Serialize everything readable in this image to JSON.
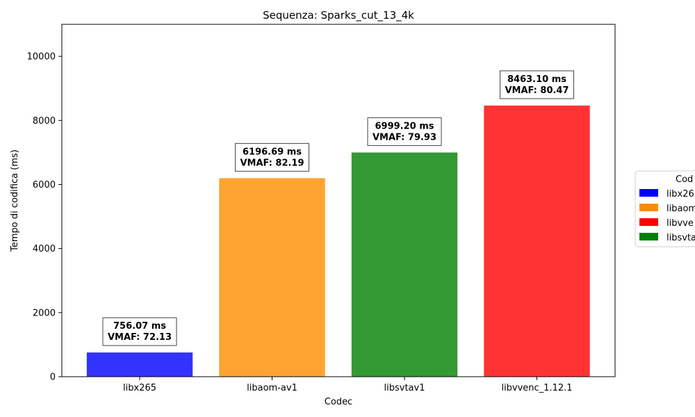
{
  "chart_data": {
    "type": "bar",
    "title": "Sequenza: Sparks_cut_13_4k",
    "xlabel": "Codec",
    "ylabel": "Tempo di codifica (ms)",
    "ylim": [
      0,
      11000
    ],
    "yticks": [
      0,
      2000,
      4000,
      6000,
      8000,
      10000
    ],
    "grid": false,
    "categories": [
      "libx265",
      "libaom-av1",
      "libsvtav1",
      "libvvenc_1.12.1"
    ],
    "values": [
      756.07,
      6196.69,
      6999.2,
      8463.1
    ],
    "bar_colors": [
      "#3333ff",
      "#ffa333",
      "#339933",
      "#ff3333"
    ],
    "annotations": [
      {
        "line1": "756.07 ms",
        "line2": "VMAF: 72.13"
      },
      {
        "line1": "6196.69 ms",
        "line2": "VMAF: 82.19"
      },
      {
        "line1": "6999.20 ms",
        "line2": "VMAF: 79.93"
      },
      {
        "line1": "8463.10 ms",
        "line2": "VMAF: 80.47"
      }
    ],
    "legend": {
      "title": "Cod",
      "placement": "right",
      "entries": [
        {
          "label": "libx26",
          "color": "#0000ff"
        },
        {
          "label": "libaom",
          "color": "#ff8c00"
        },
        {
          "label": "libvve",
          "color": "#ff0000"
        },
        {
          "label": "libsvta",
          "color": "#008000"
        }
      ]
    }
  }
}
